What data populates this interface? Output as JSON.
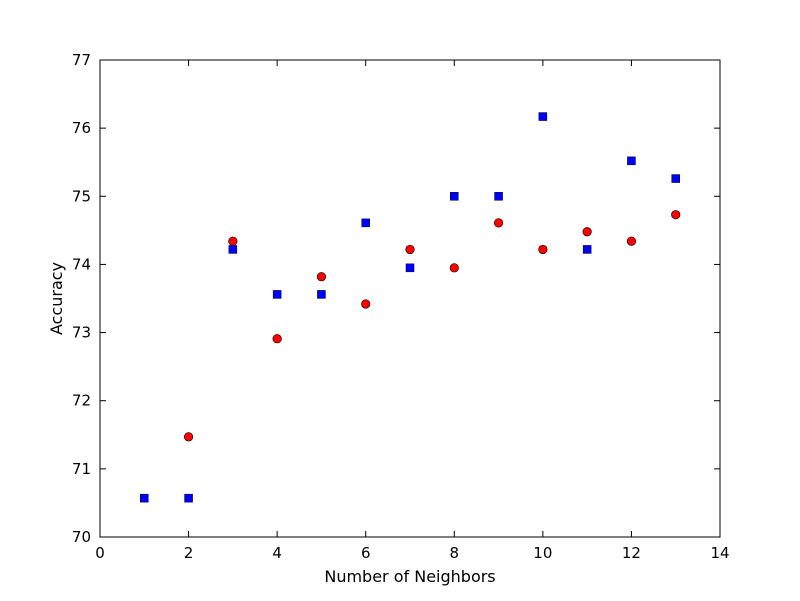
{
  "chart_data": {
    "type": "scatter",
    "title": "",
    "xlabel": "Number of Neighbors",
    "ylabel": "Accuracy",
    "xlim": [
      0,
      14
    ],
    "ylim": [
      70,
      77
    ],
    "x_ticks": [
      "0",
      "2",
      "4",
      "6",
      "8",
      "10",
      "12",
      "14"
    ],
    "y_ticks": [
      "70",
      "71",
      "72",
      "73",
      "74",
      "75",
      "76",
      "77"
    ],
    "grid": false,
    "legend": "none",
    "series": [
      {
        "marker": "circle",
        "color": "#ff0000",
        "points": [
          {
            "x": 2,
            "y": 71.47
          },
          {
            "x": 3,
            "y": 74.34
          },
          {
            "x": 4,
            "y": 72.91
          },
          {
            "x": 5,
            "y": 73.82
          },
          {
            "x": 6,
            "y": 73.42
          },
          {
            "x": 7,
            "y": 74.22
          },
          {
            "x": 8,
            "y": 73.95
          },
          {
            "x": 9,
            "y": 74.61
          },
          {
            "x": 10,
            "y": 74.22
          },
          {
            "x": 11,
            "y": 74.48
          },
          {
            "x": 12,
            "y": 74.34
          },
          {
            "x": 13,
            "y": 74.73
          }
        ]
      },
      {
        "marker": "square",
        "color": "#0000ff",
        "points": [
          {
            "x": 1,
            "y": 70.57
          },
          {
            "x": 2,
            "y": 70.57
          },
          {
            "x": 3,
            "y": 74.22
          },
          {
            "x": 4,
            "y": 73.56
          },
          {
            "x": 5,
            "y": 73.56
          },
          {
            "x": 6,
            "y": 74.61
          },
          {
            "x": 7,
            "y": 73.95
          },
          {
            "x": 8,
            "y": 75.0
          },
          {
            "x": 9,
            "y": 75.0
          },
          {
            "x": 10,
            "y": 76.17
          },
          {
            "x": 11,
            "y": 74.22
          },
          {
            "x": 12,
            "y": 75.52
          },
          {
            "x": 13,
            "y": 75.26
          }
        ]
      }
    ]
  }
}
